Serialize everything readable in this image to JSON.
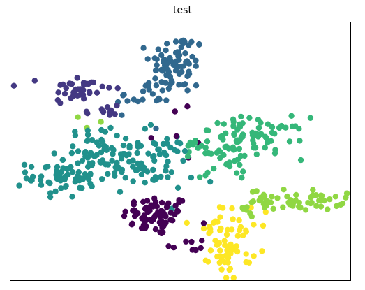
{
  "chart_data": {
    "type": "scatter",
    "title": "test",
    "xlabel": "",
    "ylabel": "",
    "xlim": [
      0,
      100
    ],
    "ylim": [
      0,
      100
    ],
    "grid": false,
    "show_ticks": false,
    "series": [
      {
        "color": "#440154",
        "clusters": [
          {
            "center": [
              43,
              25
            ],
            "spread": [
              5,
              4
            ],
            "count": 70
          },
          {
            "center": [
              52,
              14
            ],
            "spread": [
              3,
              2
            ],
            "count": 8
          },
          {
            "center": [
              48,
              58
            ],
            "spread": [
              6,
              6
            ],
            "count": 6
          }
        ]
      },
      {
        "color": "#443983",
        "clusters": [
          {
            "center": [
              20,
              74
            ],
            "spread": [
              5,
              3
            ],
            "count": 38
          },
          {
            "center": [
              27,
              65
            ],
            "spread": [
              3,
              2
            ],
            "count": 10
          }
        ]
      },
      {
        "color": "#31688e",
        "clusters": [
          {
            "center": [
              49,
              84
            ],
            "spread": [
              4,
              6
            ],
            "count": 75
          },
          {
            "center": [
              39,
              71
            ],
            "spread": [
              4,
              3
            ],
            "count": 20
          }
        ]
      },
      {
        "color": "#21918c",
        "clusters": [
          {
            "center": [
              15,
              40
            ],
            "spread": [
              5,
              4
            ],
            "count": 60
          },
          {
            "center": [
              28,
              49
            ],
            "spread": [
              6,
              5
            ],
            "count": 75
          },
          {
            "center": [
              42,
              45
            ],
            "spread": [
              6,
              6
            ],
            "count": 55
          }
        ]
      },
      {
        "color": "#35b779",
        "clusters": [
          {
            "center": [
              71,
              55
            ],
            "spread": [
              8,
              4
            ],
            "count": 80
          },
          {
            "center": [
              58,
              50
            ],
            "spread": [
              4,
              3
            ],
            "count": 15
          },
          {
            "center": [
              66,
              43
            ],
            "spread": [
              5,
              3
            ],
            "count": 10
          }
        ]
      },
      {
        "color": "#90d743",
        "clusters": [
          {
            "center": [
              84,
              31
            ],
            "spread": [
              7,
              2
            ],
            "count": 55
          },
          {
            "center": [
              73,
              28
            ],
            "spread": [
              3,
              2
            ],
            "count": 10
          },
          {
            "center": [
              22,
              63
            ],
            "spread": [
              3,
              2
            ],
            "count": 3
          }
        ]
      },
      {
        "color": "#fde725",
        "clusters": [
          {
            "center": [
              65,
              12
            ],
            "spread": [
              3,
              5
            ],
            "count": 45
          },
          {
            "center": [
              59,
              21
            ],
            "spread": [
              3,
              2
            ],
            "count": 12
          },
          {
            "center": [
              70,
              25
            ],
            "spread": [
              4,
              2
            ],
            "count": 10
          }
        ]
      }
    ]
  }
}
